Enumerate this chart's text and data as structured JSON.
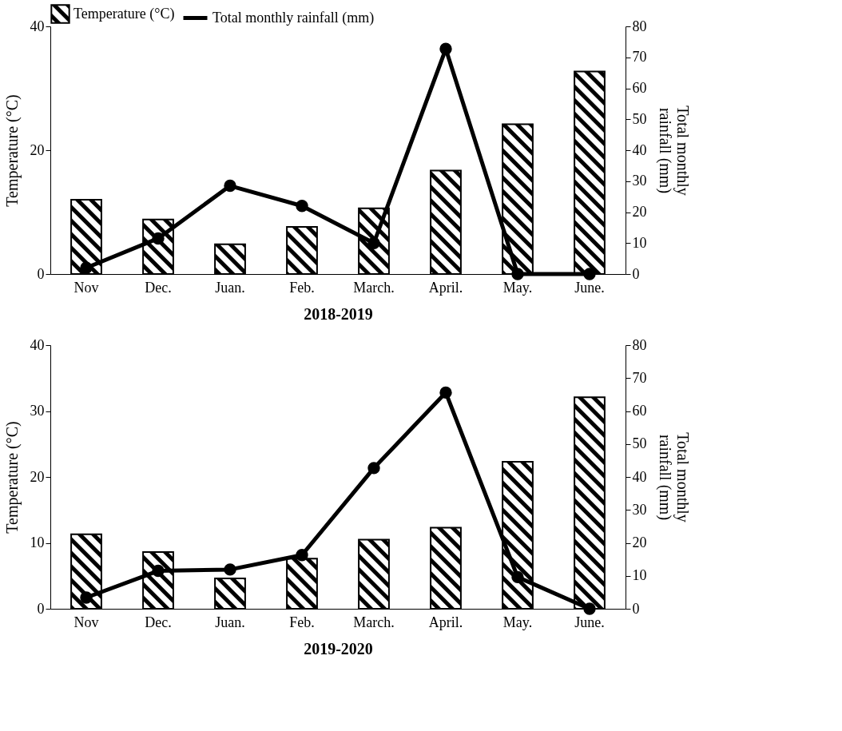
{
  "chart_data": [
    {
      "type": "bar",
      "categories": [
        "Nov",
        "Dec.",
        "Juan.",
        "Feb.",
        "March.",
        "April.",
        "May.",
        "June."
      ],
      "xlabel": "2018-2019",
      "ylabel": "Temperature (°C)",
      "y2label": "Total monthly rainfall (mm)",
      "ylim": [
        0,
        40
      ],
      "yticks": [
        0,
        20,
        40
      ],
      "y2lim": [
        0,
        80
      ],
      "y2ticks": [
        0,
        10,
        20,
        30,
        40,
        50,
        60,
        70,
        80
      ],
      "grid": false,
      "legend": "top",
      "series": [
        {
          "name": "Temperature (°C)",
          "color": "#000000",
          "values": [
            12.0,
            8.8,
            4.8,
            7.6,
            10.6,
            16.7,
            24.2,
            32.7
          ]
        },
        {
          "name": "Total monthly rainfall (mm)",
          "type": "line",
          "axis": "y2",
          "marker": "circle",
          "color": "#000000",
          "values": [
            2.0,
            11.5,
            28.5,
            22.0,
            10.0,
            72.7,
            0,
            0
          ]
        }
      ]
    },
    {
      "type": "bar",
      "categories": [
        "Nov",
        "Dec.",
        "Juan.",
        "Feb.",
        "March.",
        "April.",
        "May.",
        "June."
      ],
      "xlabel": "2019-2020",
      "ylabel": "Temperature (°C)",
      "y2label": "Total monthly rainfall (mm)",
      "ylim": [
        0,
        40
      ],
      "yticks": [
        0,
        10,
        20,
        30,
        40
      ],
      "y2lim": [
        0,
        80
      ],
      "y2ticks": [
        0,
        10,
        20,
        30,
        40,
        50,
        60,
        70,
        80
      ],
      "grid": false,
      "legend": false,
      "series": [
        {
          "color": "#000000",
          "values": [
            11.3,
            8.6,
            4.6,
            7.6,
            10.5,
            12.3,
            22.3,
            32.1
          ]
        },
        {
          "type": "line",
          "axis": "y2",
          "marker": "circle",
          "color": "#000000",
          "values": [
            3.4,
            11.5,
            11.9,
            16.3,
            42.7,
            65.6,
            9.6,
            0
          ]
        }
      ]
    }
  ]
}
